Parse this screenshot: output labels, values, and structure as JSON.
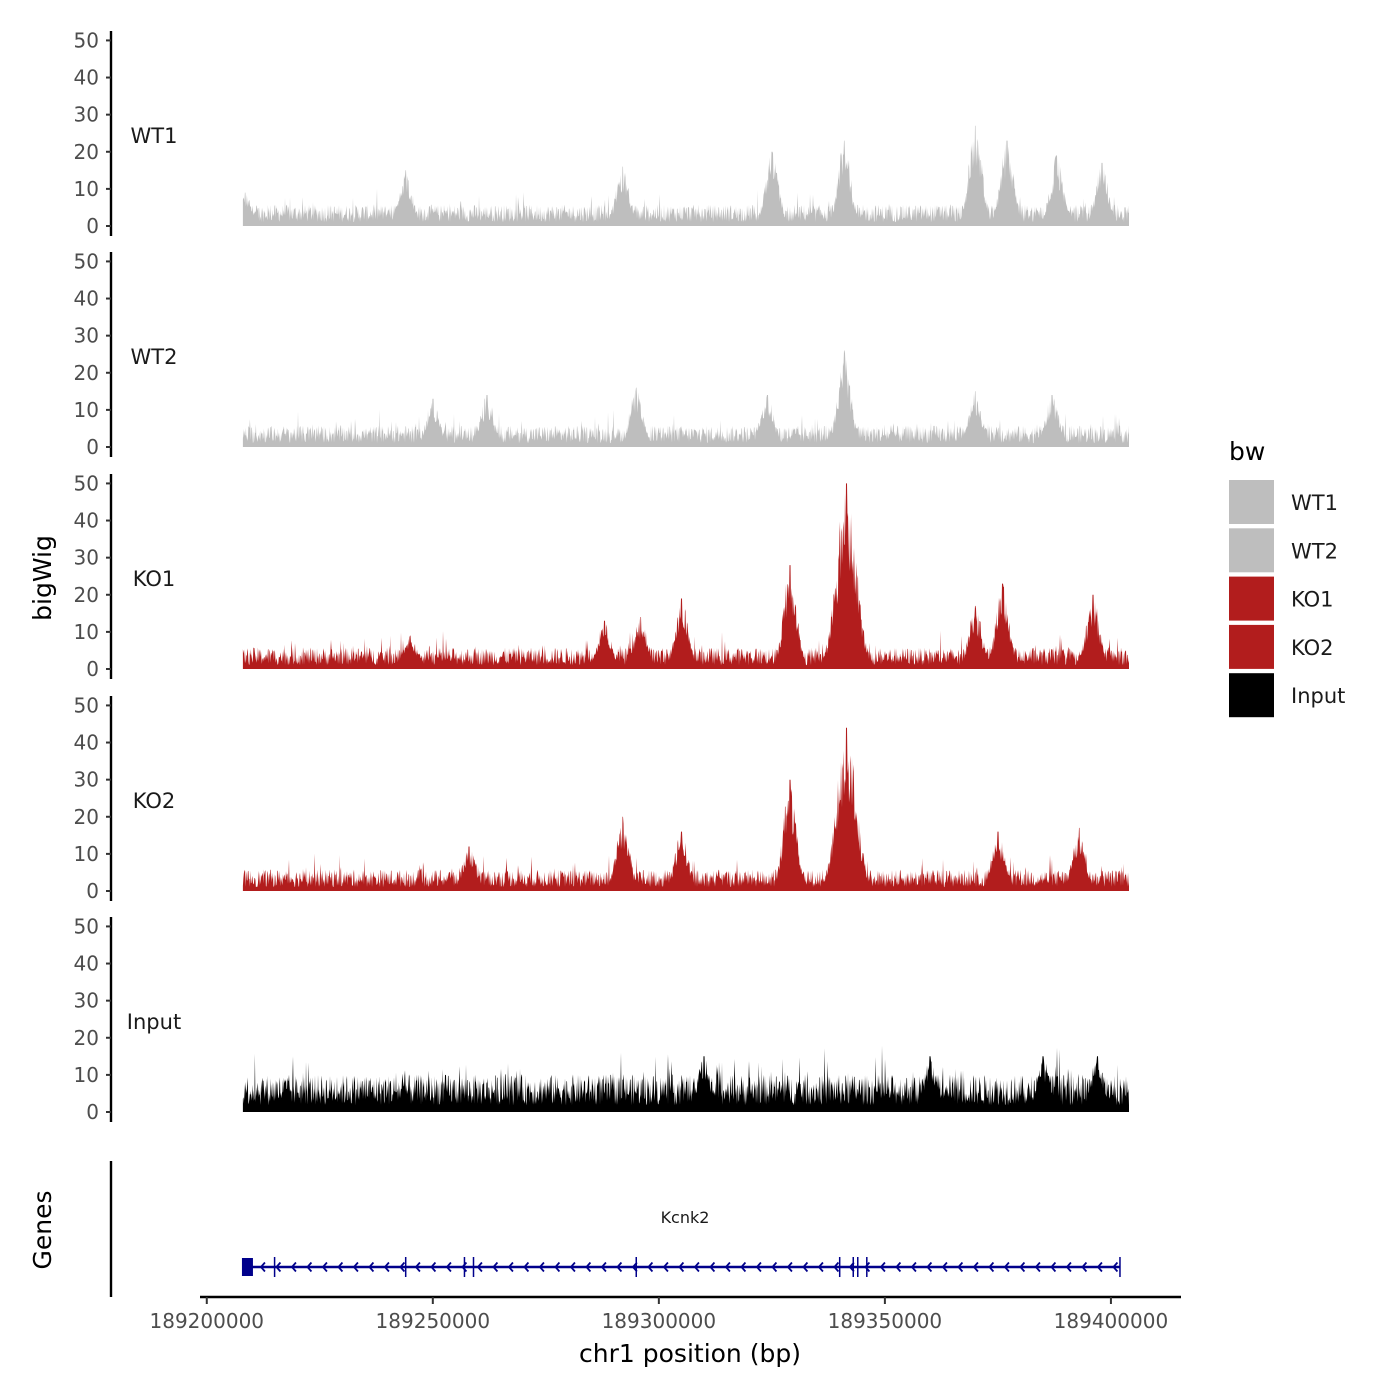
{
  "chart_data": {
    "type": "area",
    "ylabel": "bigWig",
    "xlabel": "chr1 position (bp)",
    "xlim": [
      189198500,
      189415500
    ],
    "ylim": [
      0,
      52
    ],
    "y_ticks": [
      0,
      10,
      20,
      30,
      40,
      50
    ],
    "x_ticks": [
      189200000,
      189250000,
      189300000,
      189350000,
      189400000
    ],
    "x_tick_labels": [
      "189200000",
      "189250000",
      "189300000",
      "189350000",
      "189400000"
    ],
    "region": [
      189208000,
      189404000
    ],
    "series": [
      {
        "name": "WT1",
        "color": "#bebebe",
        "baseline": 4,
        "peaks": [
          [
            189208500,
            9
          ],
          [
            189244000,
            15
          ],
          [
            189292000,
            16
          ],
          [
            189325000,
            20
          ],
          [
            189341000,
            23
          ],
          [
            189370000,
            27
          ],
          [
            189377000,
            23
          ],
          [
            189388000,
            19
          ],
          [
            189398000,
            17
          ]
        ]
      },
      {
        "name": "WT2",
        "color": "#bebebe",
        "baseline": 4,
        "peaks": [
          [
            189250000,
            13
          ],
          [
            189262000,
            14
          ],
          [
            189295000,
            16
          ],
          [
            189324000,
            14
          ],
          [
            189341000,
            26
          ],
          [
            189370000,
            15
          ],
          [
            189387000,
            14
          ]
        ]
      },
      {
        "name": "KO1",
        "color": "#b21d1d",
        "baseline": 4,
        "peaks": [
          [
            189245000,
            9
          ],
          [
            189288000,
            13
          ],
          [
            189296000,
            14
          ],
          [
            189305000,
            19
          ],
          [
            189329000,
            28
          ],
          [
            189341500,
            50
          ],
          [
            189370000,
            17
          ],
          [
            189376000,
            23
          ],
          [
            189396000,
            20
          ]
        ]
      },
      {
        "name": "KO2",
        "color": "#b21d1d",
        "baseline": 4,
        "peaks": [
          [
            189258000,
            12
          ],
          [
            189292000,
            20
          ],
          [
            189305000,
            16
          ],
          [
            189329000,
            30
          ],
          [
            189341500,
            44
          ],
          [
            189375000,
            16
          ],
          [
            189393000,
            17
          ]
        ]
      },
      {
        "name": "Input",
        "color": "#000000",
        "baseline": 7,
        "peaks": [
          [
            189310000,
            15
          ],
          [
            189360000,
            15
          ],
          [
            189385000,
            15
          ],
          [
            189397000,
            15
          ]
        ]
      }
    ],
    "legend": {
      "title": "bw",
      "position": "right",
      "entries": [
        {
          "label": "WT1",
          "color": "#bebebe"
        },
        {
          "label": "WT2",
          "color": "#bebebe"
        },
        {
          "label": "KO1",
          "color": "#b21d1d"
        },
        {
          "label": "KO2",
          "color": "#b21d1d"
        },
        {
          "label": "Input",
          "color": "#000000"
        }
      ]
    },
    "genes_track": {
      "title": "Genes",
      "gene_name": "Kcnk2",
      "strand": "-",
      "start": 189208000,
      "end": 189402000,
      "color": "#00008b",
      "exons": [
        189208000,
        189215000,
        189244000,
        189257000,
        189259000,
        189295000,
        189340000,
        189343000,
        189344000,
        189346000,
        189402000
      ]
    }
  }
}
